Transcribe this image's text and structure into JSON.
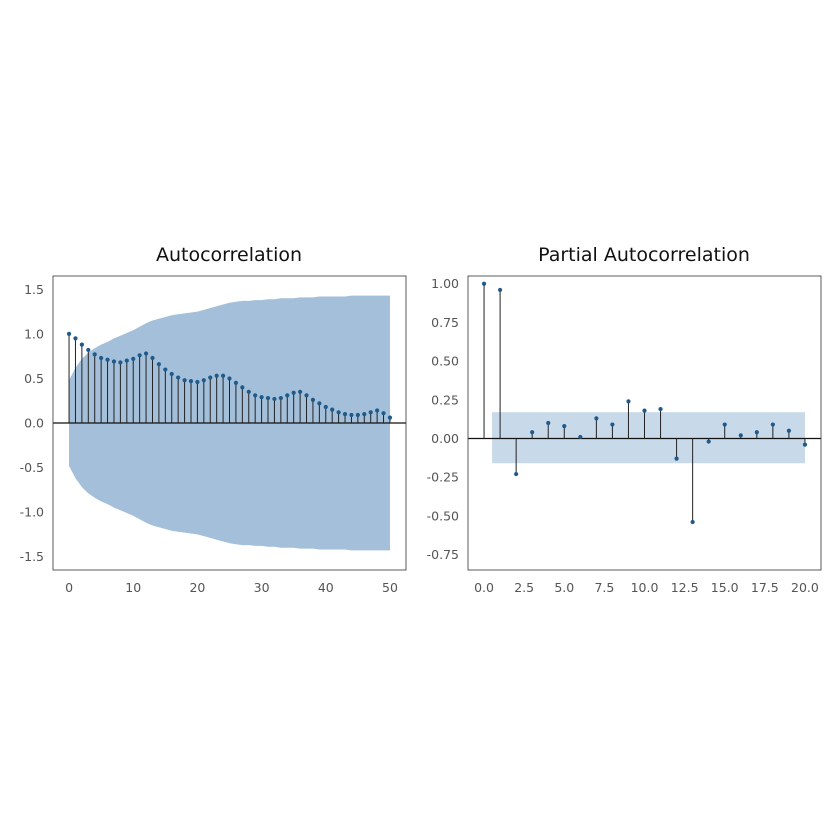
{
  "chart_data": [
    {
      "type": "acf-stem",
      "title": "Autocorrelation",
      "xlabel": "",
      "ylabel": "",
      "xlim": [
        -2.5,
        52.5
      ],
      "ylim": [
        -1.65,
        1.65
      ],
      "xticks": [
        0,
        10,
        20,
        30,
        40,
        50
      ],
      "xtick_labels": [
        "0",
        "10",
        "20",
        "30",
        "40",
        "50"
      ],
      "yticks": [
        1.5,
        1.0,
        0.5,
        0.0,
        -0.5,
        -1.0,
        -1.5
      ],
      "ytick_labels": [
        "1.5",
        "1.0",
        "0.5",
        "0.0",
        "-0.5",
        "-1.0",
        "-1.5"
      ],
      "lags": [
        0,
        1,
        2,
        3,
        4,
        5,
        6,
        7,
        8,
        9,
        10,
        11,
        12,
        13,
        14,
        15,
        16,
        17,
        18,
        19,
        20,
        21,
        22,
        23,
        24,
        25,
        26,
        27,
        28,
        29,
        30,
        31,
        32,
        33,
        34,
        35,
        36,
        37,
        38,
        39,
        40,
        41,
        42,
        43,
        44,
        45,
        46,
        47,
        48,
        49,
        50
      ],
      "values": [
        1.0,
        0.95,
        0.88,
        0.82,
        0.77,
        0.73,
        0.71,
        0.69,
        0.68,
        0.7,
        0.72,
        0.76,
        0.78,
        0.73,
        0.66,
        0.6,
        0.55,
        0.51,
        0.48,
        0.47,
        0.46,
        0.48,
        0.51,
        0.53,
        0.53,
        0.5,
        0.45,
        0.4,
        0.35,
        0.31,
        0.29,
        0.28,
        0.27,
        0.28,
        0.31,
        0.34,
        0.35,
        0.31,
        0.26,
        0.22,
        0.18,
        0.15,
        0.12,
        0.1,
        0.09,
        0.09,
        0.1,
        0.12,
        0.14,
        0.11,
        0.06
      ],
      "confidence_band": {
        "lags": [
          0,
          1,
          2,
          3,
          4,
          5,
          6,
          7,
          8,
          9,
          10,
          11,
          12,
          13,
          14,
          15,
          16,
          17,
          18,
          19,
          20,
          21,
          22,
          23,
          24,
          25,
          26,
          27,
          28,
          29,
          30,
          31,
          32,
          33,
          34,
          35,
          36,
          37,
          38,
          39,
          40,
          41,
          42,
          43,
          44,
          45,
          46,
          47,
          48,
          49,
          50
        ],
        "upper": [
          0.48,
          0.62,
          0.72,
          0.79,
          0.84,
          0.88,
          0.91,
          0.95,
          0.98,
          1.01,
          1.04,
          1.08,
          1.12,
          1.15,
          1.17,
          1.19,
          1.21,
          1.22,
          1.23,
          1.24,
          1.25,
          1.27,
          1.29,
          1.31,
          1.33,
          1.35,
          1.36,
          1.37,
          1.37,
          1.38,
          1.38,
          1.39,
          1.39,
          1.4,
          1.4,
          1.4,
          1.41,
          1.41,
          1.41,
          1.42,
          1.42,
          1.42,
          1.42,
          1.42,
          1.43,
          1.43,
          1.43,
          1.43,
          1.43,
          1.43,
          1.43
        ],
        "lower": [
          -0.48,
          -0.62,
          -0.72,
          -0.79,
          -0.84,
          -0.88,
          -0.91,
          -0.95,
          -0.98,
          -1.01,
          -1.04,
          -1.08,
          -1.12,
          -1.15,
          -1.17,
          -1.19,
          -1.21,
          -1.22,
          -1.23,
          -1.24,
          -1.25,
          -1.27,
          -1.29,
          -1.31,
          -1.33,
          -1.35,
          -1.36,
          -1.37,
          -1.37,
          -1.38,
          -1.38,
          -1.39,
          -1.39,
          -1.4,
          -1.4,
          -1.4,
          -1.41,
          -1.41,
          -1.41,
          -1.42,
          -1.42,
          -1.42,
          -1.42,
          -1.42,
          -1.43,
          -1.43,
          -1.43,
          -1.43,
          -1.43,
          -1.43,
          -1.43
        ],
        "color": "#a3bfd9"
      },
      "grid": false
    },
    {
      "type": "pacf-stem",
      "title": "Partial Autocorrelation",
      "xlabel": "",
      "ylabel": "",
      "xlim": [
        -1.0,
        21.0
      ],
      "ylim": [
        -0.85,
        1.05
      ],
      "xticks": [
        0,
        2.5,
        5,
        7.5,
        10,
        12.5,
        15,
        17.5,
        20
      ],
      "xtick_labels": [
        "0.0",
        "2.5",
        "5.0",
        "7.5",
        "10.0",
        "12.5",
        "15.0",
        "17.5",
        "20.0"
      ],
      "yticks": [
        1.0,
        0.75,
        0.5,
        0.25,
        0.0,
        -0.25,
        -0.5,
        -0.75
      ],
      "ytick_labels": [
        "1.00",
        "0.75",
        "0.50",
        "0.25",
        "0.00",
        "-0.25",
        "-0.50",
        "-0.75"
      ],
      "lags": [
        0,
        1,
        2,
        3,
        4,
        5,
        6,
        7,
        8,
        9,
        10,
        11,
        12,
        13,
        14,
        15,
        16,
        17,
        18,
        19,
        20
      ],
      "values": [
        1.0,
        0.96,
        -0.23,
        0.04,
        0.1,
        0.08,
        0.01,
        0.13,
        0.09,
        0.24,
        0.18,
        0.19,
        -0.13,
        -0.54,
        -0.02,
        0.09,
        0.02,
        0.04,
        0.09,
        0.05,
        -0.04
      ],
      "confidence_band": {
        "x_from": 1,
        "x_to": 20,
        "upper": 0.17,
        "lower": -0.16,
        "color": "#c8d9ea"
      },
      "grid": false
    }
  ],
  "colors": {
    "marker": "#1f5a8a",
    "stem": "#222222",
    "axis": "#333333",
    "tick_text": "#555555"
  }
}
